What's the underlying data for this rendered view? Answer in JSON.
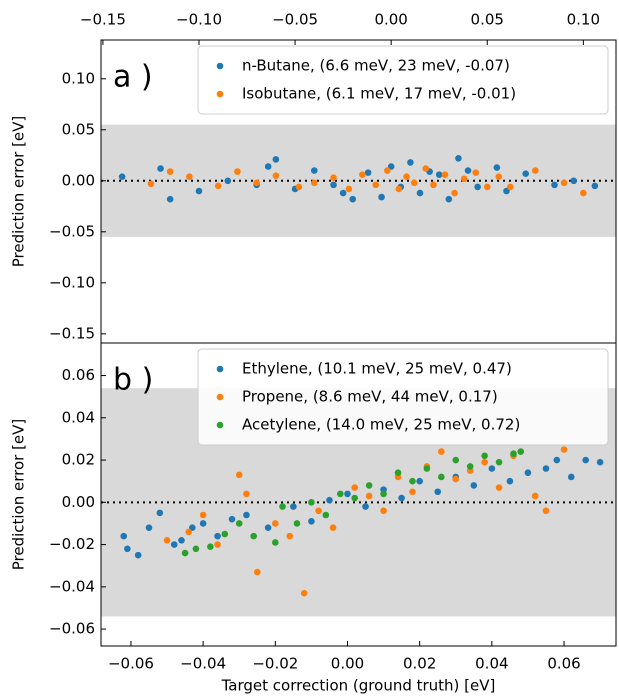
{
  "chart_data": [
    {
      "type": "scatter",
      "panel_label": "a )",
      "ylabel": "Prediction error [eV]",
      "xaxis_position": "top",
      "legend": "upper right",
      "xlim": [
        -0.151,
        0.117
      ],
      "ylim": [
        -0.159,
        0.138
      ],
      "xticks": [
        {
          "value": -0.15,
          "label": "−0.15"
        },
        {
          "value": -0.1,
          "label": "−0.10"
        },
        {
          "value": -0.05,
          "label": "−0.05"
        },
        {
          "value": 0,
          "label": "0.00"
        },
        {
          "value": 0.05,
          "label": "0.05"
        },
        {
          "value": 0.1,
          "label": "0.10"
        }
      ],
      "yticks": [
        {
          "value": -0.15,
          "label": "−0.15"
        },
        {
          "value": -0.1,
          "label": "−0.10"
        },
        {
          "value": -0.05,
          "label": "−0.05"
        },
        {
          "value": 0,
          "label": "0.00"
        },
        {
          "value": 0.05,
          "label": "0.05"
        },
        {
          "value": 0.1,
          "label": "0.10"
        }
      ],
      "shaded_band": [
        -0.055,
        0.055
      ],
      "hline": 0,
      "series": [
        {
          "name": "n-Butane, (6.6 meV, 23 meV, -0.07)",
          "color": "#1f77b4",
          "x": [
            -0.14,
            -0.12,
            -0.115,
            -0.1,
            -0.085,
            -0.07,
            -0.064,
            -0.06,
            -0.05,
            -0.04,
            -0.03,
            -0.025,
            -0.02,
            -0.012,
            -0.005,
            0.0,
            0.005,
            0.01,
            0.015,
            0.02,
            0.025,
            0.03,
            0.035,
            0.04,
            0.045,
            0.055,
            0.06,
            0.07,
            0.085,
            0.095,
            0.106
          ],
          "values": [
            0.004,
            0.012,
            -0.018,
            -0.01,
            0.0,
            -0.004,
            0.014,
            0.021,
            -0.008,
            0.01,
            -0.004,
            -0.012,
            -0.018,
            0.008,
            -0.016,
            0.014,
            -0.006,
            0.018,
            -0.012,
            0.009,
            0.006,
            -0.018,
            0.022,
            0.01,
            -0.006,
            0.013,
            -0.01,
            0.007,
            -0.004,
            0.0,
            -0.005
          ]
        },
        {
          "name": "Isobutane, (6.1 meV, 17 meV, -0.01)",
          "color": "#ff7f0e",
          "x": [
            -0.125,
            -0.115,
            -0.105,
            -0.09,
            -0.08,
            -0.07,
            -0.06,
            -0.048,
            -0.04,
            -0.03,
            -0.022,
            -0.015,
            -0.008,
            -0.002,
            0.004,
            0.008,
            0.012,
            0.018,
            0.022,
            0.028,
            0.033,
            0.038,
            0.044,
            0.05,
            0.056,
            0.062,
            0.075,
            0.09,
            0.1
          ],
          "values": [
            -0.003,
            0.009,
            0.004,
            -0.005,
            0.009,
            -0.002,
            0.005,
            -0.006,
            -0.002,
            0.003,
            -0.008,
            0.006,
            -0.004,
            0.01,
            -0.008,
            0.004,
            -0.002,
            0.012,
            -0.004,
            0.006,
            -0.012,
            0.002,
            0.008,
            -0.006,
            0.004,
            -0.006,
            0.01,
            -0.002,
            -0.012
          ]
        }
      ]
    },
    {
      "type": "scatter",
      "panel_label": "b )",
      "ylabel": "Prediction error [eV]",
      "xlabel": "Target correction (ground truth) [eV]",
      "xaxis_position": "bottom",
      "legend": "upper right",
      "xlim": [
        -0.0683,
        0.0744
      ],
      "ylim": [
        -0.068,
        0.0754
      ],
      "xticks": [
        {
          "value": -0.06,
          "label": "−0.06"
        },
        {
          "value": -0.04,
          "label": "−0.04"
        },
        {
          "value": -0.02,
          "label": "−0.02"
        },
        {
          "value": 0,
          "label": "0.00"
        },
        {
          "value": 0.02,
          "label": "0.02"
        },
        {
          "value": 0.04,
          "label": "0.04"
        },
        {
          "value": 0.06,
          "label": "0.06"
        }
      ],
      "yticks": [
        {
          "value": -0.06,
          "label": "−0.06"
        },
        {
          "value": -0.04,
          "label": "−0.04"
        },
        {
          "value": -0.02,
          "label": "−0.02"
        },
        {
          "value": 0,
          "label": "0.00"
        },
        {
          "value": 0.02,
          "label": "0.02"
        },
        {
          "value": 0.04,
          "label": "0.04"
        },
        {
          "value": 0.06,
          "label": "0.06"
        }
      ],
      "shaded_band": [
        -0.054,
        0.054
      ],
      "hline": 0,
      "series": [
        {
          "name": "Ethylene, (10.1 meV, 25 meV, 0.47)",
          "color": "#1f77b4",
          "x": [
            -0.062,
            -0.061,
            -0.058,
            -0.055,
            -0.052,
            -0.048,
            -0.046,
            -0.043,
            -0.04,
            -0.036,
            -0.032,
            -0.028,
            -0.022,
            -0.015,
            -0.01,
            -0.005,
            0.0,
            0.005,
            0.01,
            0.015,
            0.02,
            0.025,
            0.03,
            0.035,
            0.04,
            0.045,
            0.05,
            0.055,
            0.058,
            0.062,
            0.066,
            0.07
          ],
          "values": [
            -0.016,
            -0.022,
            -0.025,
            -0.012,
            -0.005,
            -0.02,
            -0.018,
            -0.012,
            -0.01,
            -0.016,
            -0.008,
            -0.006,
            -0.012,
            -0.002,
            -0.009,
            0.001,
            0.004,
            -0.002,
            0.006,
            0.002,
            0.01,
            0.005,
            0.012,
            0.008,
            0.016,
            0.01,
            0.014,
            0.016,
            0.02,
            0.012,
            0.02,
            0.019
          ]
        },
        {
          "name": "Propene, (8.6 meV, 44 meV, 0.17)",
          "color": "#ff7f0e",
          "x": [
            -0.05,
            -0.044,
            -0.04,
            -0.036,
            -0.03,
            -0.028,
            -0.025,
            -0.02,
            -0.016,
            -0.012,
            -0.008,
            -0.004,
            0.002,
            0.006,
            0.01,
            0.014,
            0.018,
            0.022,
            0.026,
            0.03,
            0.034,
            0.038,
            0.042,
            0.046,
            0.052,
            0.055,
            0.06
          ],
          "values": [
            -0.018,
            -0.014,
            -0.006,
            -0.02,
            0.013,
            0.004,
            -0.033,
            -0.01,
            -0.016,
            -0.043,
            -0.004,
            -0.012,
            0.007,
            0.003,
            -0.004,
            0.012,
            0.005,
            0.017,
            0.024,
            0.011,
            0.015,
            0.019,
            0.007,
            0.022,
            0.003,
            -0.004,
            0.025
          ]
        },
        {
          "name": "Acetylene, (14.0 meV, 25 meV, 0.72)",
          "color": "#2ca02c",
          "x": [
            -0.045,
            -0.042,
            -0.038,
            -0.034,
            -0.03,
            -0.026,
            -0.02,
            -0.018,
            -0.014,
            -0.01,
            -0.006,
            -0.002,
            0.002,
            0.006,
            0.01,
            0.014,
            0.018,
            0.022,
            0.026,
            0.03,
            0.034,
            0.038,
            0.042,
            0.046,
            0.048
          ],
          "values": [
            -0.024,
            -0.022,
            -0.021,
            -0.015,
            -0.01,
            -0.016,
            -0.019,
            -0.002,
            -0.01,
            0.0,
            -0.006,
            0.004,
            0.002,
            0.008,
            0.004,
            0.014,
            0.01,
            0.016,
            0.012,
            0.02,
            0.017,
            0.022,
            0.019,
            0.023,
            0.024
          ]
        }
      ]
    }
  ]
}
